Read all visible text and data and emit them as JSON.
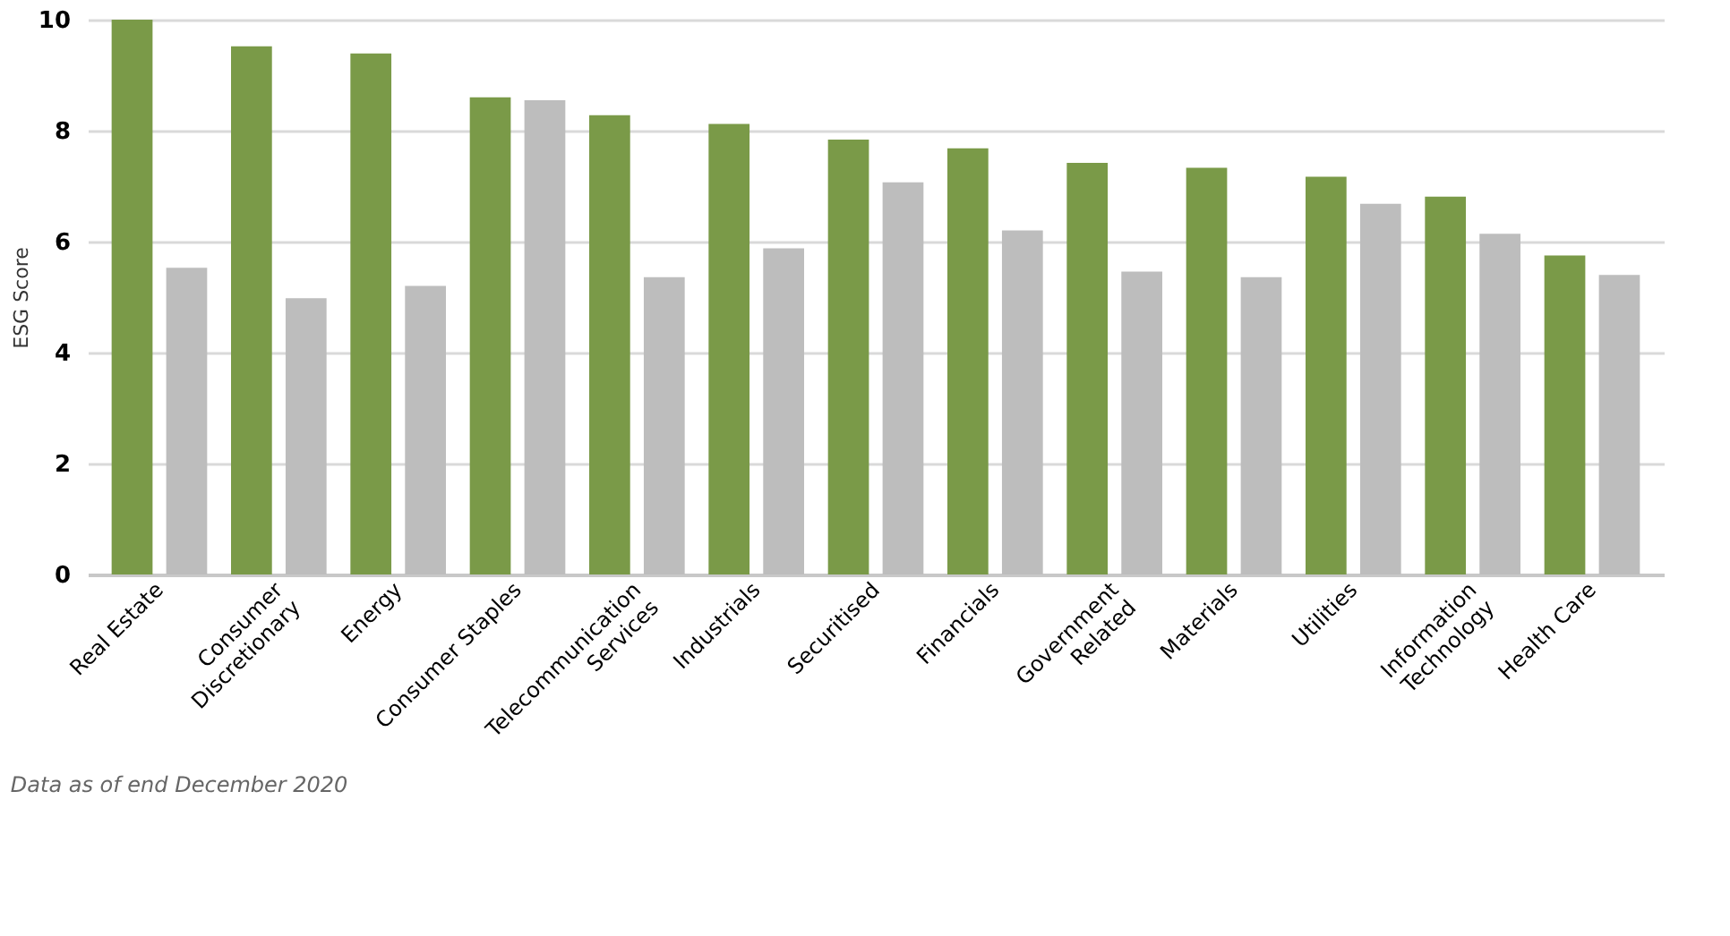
{
  "chart_data": {
    "type": "bar",
    "ylabel": "ESG Score",
    "categories": [
      "Real Estate",
      "Consumer\nDiscretionary",
      "Energy",
      "Consumer Staples",
      "Telecommunication\nServices",
      "Industrials",
      "Securitised",
      "Financials",
      "Government\nRelated",
      "Materials",
      "Utilities",
      "Information\nTechnology",
      "Health Care"
    ],
    "series": [
      {
        "color": "#7a9a48",
        "values": [
          10.0,
          9.52,
          9.39,
          8.6,
          8.28,
          8.12,
          7.84,
          7.68,
          7.42,
          7.33,
          7.17,
          6.81,
          5.75
        ]
      },
      {
        "color": "#bdbdbd",
        "values": [
          5.53,
          4.98,
          5.2,
          8.55,
          5.36,
          5.88,
          7.07,
          6.2,
          5.46,
          5.36,
          6.68,
          6.14,
          5.4
        ]
      }
    ],
    "ylim": [
      0,
      10
    ],
    "yticks": [
      0,
      2,
      4,
      6,
      8,
      10
    ],
    "grid": "y",
    "legend": false,
    "annotations": [
      "Data as of end December 2020"
    ]
  }
}
